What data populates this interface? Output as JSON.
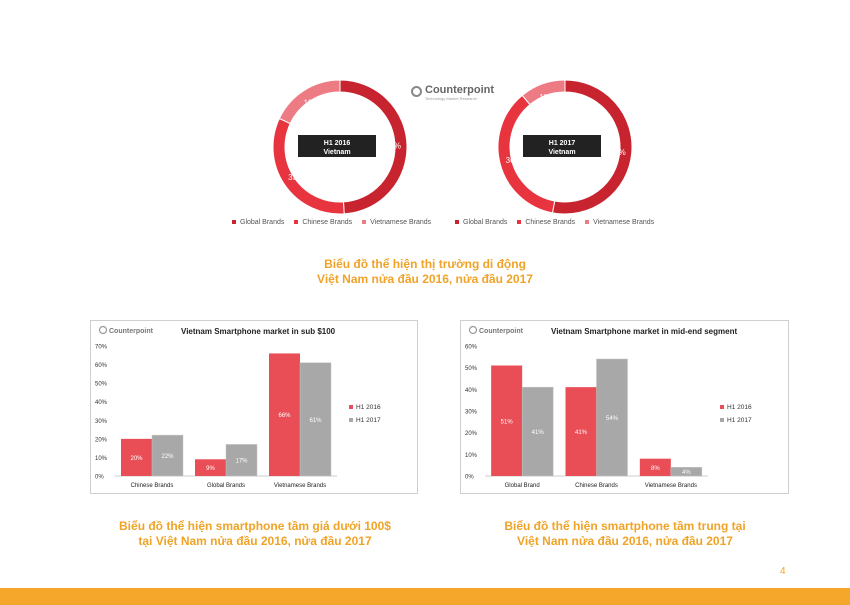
{
  "logo": {
    "name": "Counterpoint",
    "tagline": "Technology Market Research"
  },
  "colors": {
    "global": "#c8242f",
    "chinese": "#e8343e",
    "vietnamese": "#ec7b84",
    "h1_2016": "#e94e57",
    "h1_2017": "#a8a8a8",
    "caption": "#f0a326",
    "footer": "#f5a72b"
  },
  "top_caption": {
    "line1": "Biểu đồ thể hiện thị trường di động",
    "line2": "Việt Nam nửa đầu 2016, nửa đầu 2017"
  },
  "left_caption": {
    "line1": "Biểu đồ thể hiện smartphone tầm giá dưới 100$",
    "line2": "tại Việt Nam nửa đầu 2016, nửa đầu 2017"
  },
  "right_caption": {
    "line1": "Biểu đồ thể hiện smartphone tầm trung tại",
    "line2": "Việt Nam nửa đầu 2016, nửa đầu 2017"
  },
  "page_number": "4",
  "chart_data": [
    {
      "type": "pie",
      "label_line1": "H1 2016",
      "label_line2": "Vietnam",
      "categories": [
        "Global Brands",
        "Chinese Brands",
        "Vietnamese Brands"
      ],
      "values": [
        49,
        33,
        18
      ],
      "value_labels": [
        "49%",
        "33%",
        "18%"
      ]
    },
    {
      "type": "pie",
      "label_line1": "H1 2017",
      "label_line2": "Vietnam",
      "categories": [
        "Global Brands",
        "Chinese Brands",
        "Vietnamese Brands"
      ],
      "values": [
        53,
        36,
        11
      ],
      "value_labels": [
        "53%",
        "36%",
        "11%"
      ]
    },
    {
      "type": "bar",
      "title": "Vietnam Smartphone market in sub $100",
      "categories": [
        "Chinese Brands",
        "Global Brands",
        "Vietnamese Brands"
      ],
      "series": [
        {
          "name": "H1 2016",
          "values": [
            20,
            9,
            66
          ],
          "labels": [
            "20%",
            "9%",
            "66%"
          ]
        },
        {
          "name": "H1 2017",
          "values": [
            22,
            17,
            61
          ],
          "labels": [
            "22%",
            "17%",
            "61%"
          ]
        }
      ],
      "yticks": [
        "0%",
        "10%",
        "20%",
        "30%",
        "40%",
        "50%",
        "60%",
        "70%"
      ],
      "ylim": [
        0,
        70
      ]
    },
    {
      "type": "bar",
      "title": "Vietnam Smartphone market in mid-end segment",
      "categories": [
        "Global Brand",
        "Chinese Brands",
        "Vietnamese Brands"
      ],
      "series": [
        {
          "name": "H1 2016",
          "values": [
            51,
            41,
            8
          ],
          "labels": [
            "51%",
            "41%",
            "8%"
          ]
        },
        {
          "name": "H1 2017",
          "values": [
            41,
            54,
            4
          ],
          "labels": [
            "41%",
            "54%",
            "4%"
          ]
        }
      ],
      "yticks": [
        "0%",
        "10%",
        "20%",
        "30%",
        "40%",
        "50%",
        "60%"
      ],
      "ylim": [
        0,
        60
      ]
    }
  ]
}
